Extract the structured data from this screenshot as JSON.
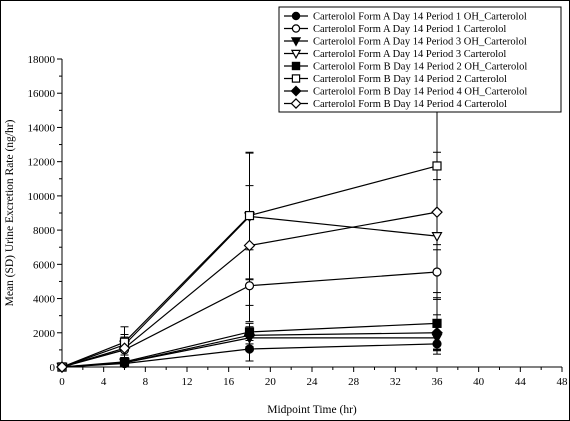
{
  "chart_data": {
    "type": "line",
    "xlabel": "Midpoint Time (hr)",
    "ylabel": "Mean (SD) Urine Excretion Rate (ng/hr)",
    "xlim": [
      0,
      48
    ],
    "ylim": [
      0,
      18000
    ],
    "xticks": [
      0,
      4,
      8,
      12,
      16,
      20,
      24,
      28,
      32,
      36,
      40,
      44,
      48
    ],
    "yticks": [
      0,
      2000,
      4000,
      6000,
      8000,
      10000,
      12000,
      14000,
      16000,
      18000
    ],
    "x": [
      0,
      6,
      18,
      36
    ],
    "grid": false,
    "legend_position": "top-right",
    "series": [
      {
        "name": "Carterolol Form A  Day 14 Period 1 OH_Carterolol",
        "marker": "circle-filled",
        "values": [
          0,
          200,
          1050,
          1350
        ],
        "error": [
          0,
          80,
          700,
          600
        ]
      },
      {
        "name": "Carterolol Form A  Day 14 Period 1 Carterolol",
        "marker": "circle-open",
        "values": [
          0,
          1000,
          4750,
          5550
        ],
        "error": [
          0,
          450,
          2100,
          1600
        ]
      },
      {
        "name": "Carterolol Form A  Day 14 Period 3 OH_Carterolol",
        "marker": "triangle-filled",
        "values": [
          0,
          250,
          1700,
          1700
        ],
        "error": [
          0,
          90,
          500,
          700
        ]
      },
      {
        "name": "Carterolol Form A  Day 14 Period 3 Carterolol",
        "marker": "triangle-open",
        "values": [
          0,
          1300,
          8800,
          7650
        ],
        "error": [
          0,
          600,
          3700,
          3300
        ]
      },
      {
        "name": "Carterolol Form B  Day 14 Period 2 OH_Carterolol",
        "marker": "square-filled",
        "values": [
          0,
          300,
          2050,
          2550
        ],
        "error": [
          0,
          100,
          500,
          1500
        ]
      },
      {
        "name": "Carterolol Form B  Day 14 Period 2 Carterolol",
        "marker": "square-open",
        "values": [
          0,
          1450,
          8850,
          11750
        ],
        "error": [
          0,
          900,
          3700,
          4900
        ]
      },
      {
        "name": "Carterolol Form B  Day 14 Period 4 OH_Carterolol",
        "marker": "diamond-filled",
        "values": [
          0,
          250,
          1850,
          2000
        ],
        "error": [
          0,
          90,
          500,
          1050
        ]
      },
      {
        "name": "Carterolol Form B  Day 14 Period 4 Carterolol",
        "marker": "diamond-open",
        "values": [
          0,
          1100,
          7100,
          9050
        ],
        "error": [
          0,
          650,
          3500,
          3500
        ]
      }
    ]
  }
}
